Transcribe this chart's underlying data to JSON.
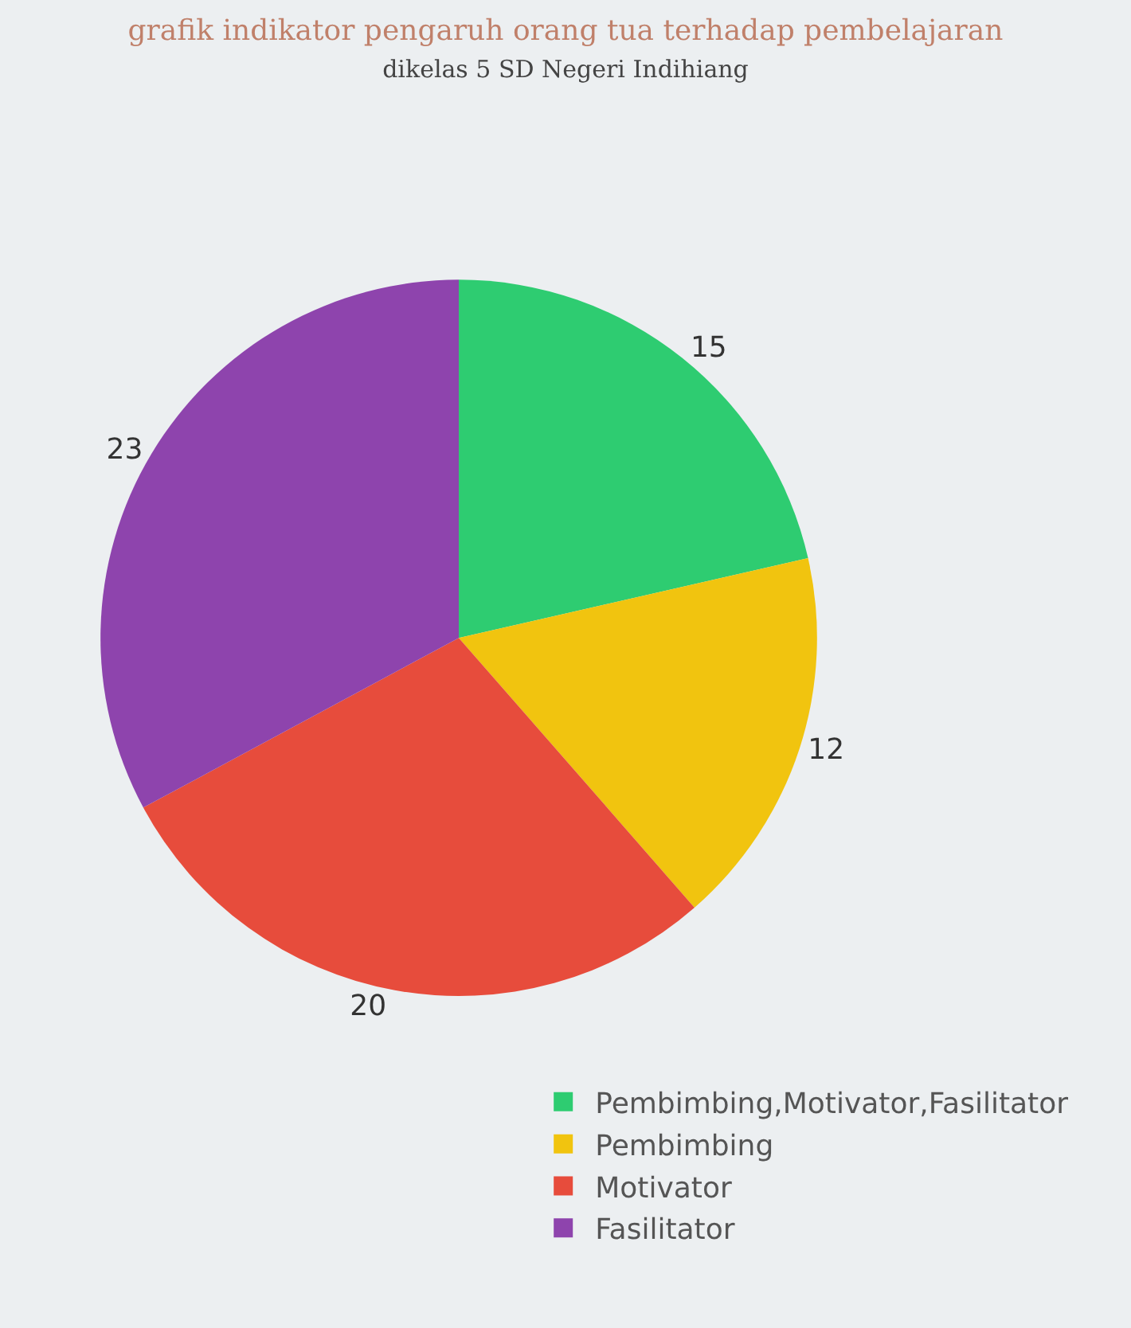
{
  "chart_data": {
    "type": "pie",
    "title": "grafik indikator pengaruh orang tua terhadap pembelajaran",
    "subtitle": "dikelas 5 SD Negeri Indihiang",
    "categories": [
      "Pembimbing,Motivator,Fasilitator",
      "Pembimbing",
      "Motivator",
      "Fasilitator"
    ],
    "values": [
      15,
      12,
      20,
      23
    ],
    "colors": [
      "#2ecc71",
      "#f1c40f",
      "#e74c3c",
      "#8e44ad"
    ],
    "data_labels": true,
    "legend": "bottom right"
  }
}
